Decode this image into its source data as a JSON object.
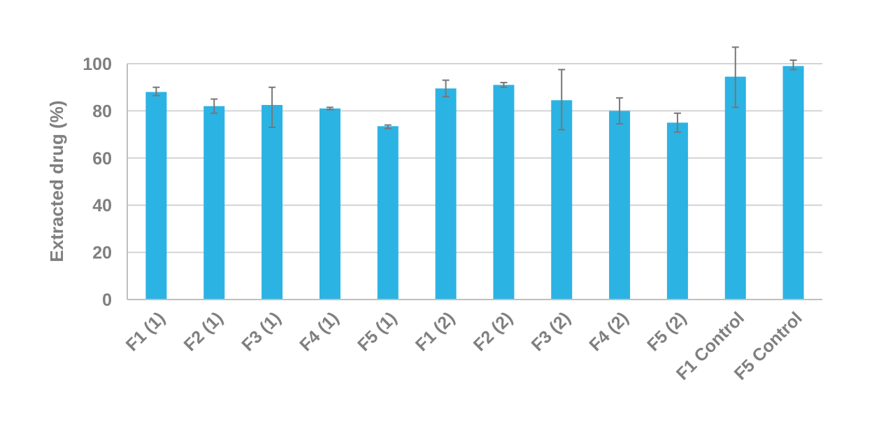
{
  "chart_data": {
    "type": "bar",
    "title": "",
    "xlabel": "",
    "ylabel": "Extracted drug (%)",
    "ylim": [
      0,
      100
    ],
    "yticks": [
      0,
      20,
      40,
      60,
      80,
      100
    ],
    "grid": true,
    "legend": "none",
    "categories": [
      "F1 (1)",
      "F2 (1)",
      "F3 (1)",
      "F4 (1)",
      "F5 (1)",
      "F1 (2)",
      "F2 (2)",
      "F3 (2)",
      "F4 (2)",
      "F5 (2)",
      "F1 Control",
      "F5 Control"
    ],
    "values": [
      88,
      82,
      82.5,
      81,
      73.5,
      89.5,
      91,
      84.5,
      80,
      75,
      94.5,
      99
    ],
    "error_upper": [
      90,
      85,
      90,
      81.5,
      74,
      93,
      92,
      97.5,
      85.5,
      79,
      107,
      101.5
    ],
    "error_lower": [
      86.5,
      79,
      73,
      80.5,
      72.5,
      86,
      90,
      72,
      74.5,
      71,
      81.5,
      97.5
    ],
    "colors": {
      "bar": "#2bb3e3",
      "error_bar": "#777777",
      "grid": "#d4d4d4",
      "axis": "#bfbfbf",
      "text": "#7f7f7f"
    }
  }
}
